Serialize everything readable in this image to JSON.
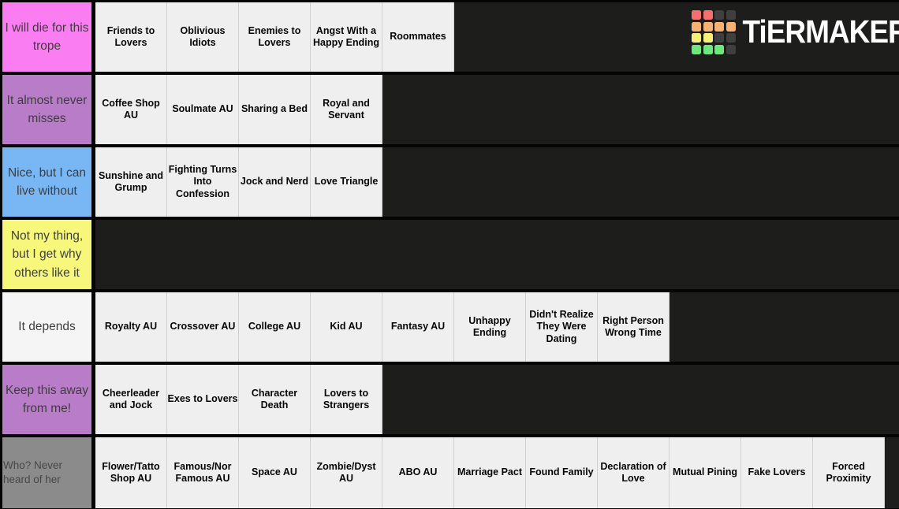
{
  "logo": {
    "text": "TiERMAKER",
    "grid_colors": [
      "#f4706f",
      "#f4706f",
      "#3f3f3f",
      "#3f3f3f",
      "#f6b173",
      "#f6b173",
      "#f6b173",
      "#f6b173",
      "#f8f07b",
      "#f8f07b",
      "#3f3f3f",
      "#3f3f3f",
      "#70e77e",
      "#70e77e",
      "#70e77e",
      "#3f3f3f"
    ]
  },
  "tiers": [
    {
      "label": "I will die for this trope",
      "color": "#fb7df2",
      "items": [
        "Friends to Lovers",
        "Oblivious Idiots",
        "Enemies to Lovers",
        "Angst With a Happy Ending",
        "Roommates"
      ]
    },
    {
      "label": "It almost never misses",
      "color": "#b87cc8",
      "items": [
        "Coffee Shop AU",
        "Soulmate AU",
        "Sharing a Bed",
        "Royal and Servant"
      ]
    },
    {
      "label": "Nice, but I can live without",
      "color": "#78b7f4",
      "items": [
        "Sunshine and Grump",
        "Fighting Turns Into Confession",
        "Jock and Nerd",
        "Love Triangle"
      ]
    },
    {
      "label": "Not my thing, but I get why others like it",
      "color": "#f7f87b",
      "items": []
    },
    {
      "label": "It depends",
      "color": "#f5f5f5",
      "items": [
        "Royalty AU",
        "Crossover AU",
        "College AU",
        "Kid AU",
        "Fantasy AU",
        "Unhappy Ending",
        "Didn't Realize They Were Dating",
        "Right Person Wrong Time"
      ]
    },
    {
      "label": "Keep this away from me!",
      "color": "#b87cc8",
      "items": [
        "Cheerleader and Jock",
        "Exes to Lovers",
        "Character Death",
        "Lovers to Strangers"
      ]
    },
    {
      "label": "Who? Never heard of her",
      "color": "#8b8b8b",
      "items": [
        "Flower/Tatto Shop AU",
        "Famous/Nor Famous AU",
        "Space AU",
        "Zombie/Dyst AU",
        "ABO AU",
        "Marriage Pact",
        "Found Family",
        "Declaration of Love",
        "Mutual Pining",
        "Fake Lovers",
        "Forced Proximity"
      ]
    }
  ]
}
